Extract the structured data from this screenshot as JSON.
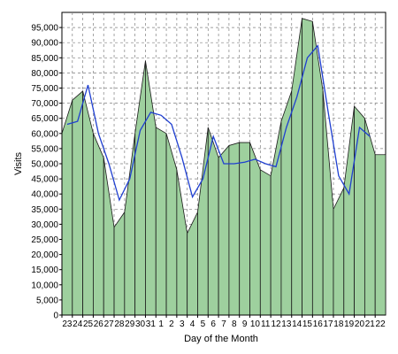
{
  "chart_data": {
    "type": "area",
    "title": "",
    "xlabel": "Day of the Month",
    "ylabel": "Visits",
    "ylim": [
      0,
      100000
    ],
    "yticks": [
      0,
      5000,
      10000,
      15000,
      20000,
      25000,
      30000,
      35000,
      40000,
      45000,
      50000,
      55000,
      60000,
      65000,
      70000,
      75000,
      80000,
      85000,
      90000,
      95000
    ],
    "ytick_labels": [
      "0",
      "5,000",
      "10,000",
      "15,000",
      "20,000",
      "25,000",
      "30,000",
      "35,000",
      "40,000",
      "45,000",
      "50,000",
      "55,000",
      "60,000",
      "65,000",
      "70,000",
      "75,000",
      "80,000",
      "85,000",
      "90,000",
      "95,000"
    ],
    "categories": [
      "23",
      "24",
      "25",
      "26",
      "27",
      "28",
      "29",
      "30",
      "31",
      "1",
      "2",
      "3",
      "4",
      "5",
      "6",
      "7",
      "8",
      "9",
      "10",
      "11",
      "12",
      "13",
      "14",
      "15",
      "16",
      "17",
      "18",
      "19",
      "20",
      "21",
      "22"
    ],
    "grid": true,
    "series": [
      {
        "values": [
          60000,
          71000,
          74000,
          60000,
          52000,
          29000,
          34000,
          60000,
          84000,
          62000,
          60000,
          48000,
          27000,
          34000,
          62000,
          52000,
          56000,
          57000,
          57000,
          48000,
          46000,
          64000,
          74000,
          98000,
          97000,
          74000,
          35000,
          42000,
          69000,
          65000,
          53000
        ],
        "color": "#9ed09e"
      },
      {
        "values": [
          63000,
          64000,
          76000,
          60000,
          50000,
          38000,
          45000,
          61000,
          67000,
          66000,
          63000,
          52000,
          39000,
          45000,
          59000,
          50000,
          50000,
          50500,
          51500,
          50000,
          49000,
          62000,
          72000,
          85000,
          89000,
          67000,
          46000,
          40000,
          62000,
          59000,
          null
        ],
        "color": "#1f3fd0"
      }
    ]
  }
}
